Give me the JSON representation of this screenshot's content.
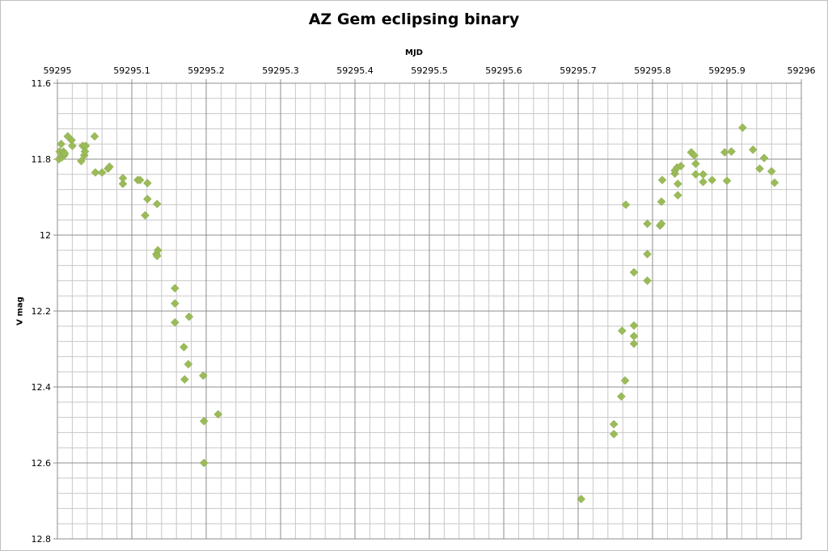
{
  "chart_data": {
    "type": "scatter",
    "title": "AZ Gem eclipsing binary",
    "xlabel": "MJD",
    "ylabel": "V mag",
    "xlim": [
      59295,
      59296
    ],
    "ylim": [
      11.6,
      12.8
    ],
    "y_inverted": true,
    "x_axis_position": "top",
    "grid": true,
    "x_ticks": [
      "59295",
      "59295.1",
      "59295.2",
      "59295.3",
      "59295.4",
      "59295.5",
      "59295.6",
      "59295.7",
      "59295.8",
      "59295.9",
      "59296"
    ],
    "y_ticks": [
      "11.6",
      "11.8",
      "12",
      "12.2",
      "12.4",
      "12.6",
      "12.8"
    ],
    "marker": "diamond",
    "marker_color": "#9bbb59",
    "points": [
      [
        59295.002,
        11.8
      ],
      [
        59295.003,
        11.78
      ],
      [
        59295.005,
        11.76
      ],
      [
        59295.006,
        11.795
      ],
      [
        59295.008,
        11.78
      ],
      [
        59295.009,
        11.79
      ],
      [
        59295.01,
        11.785
      ],
      [
        59295.014,
        11.74
      ],
      [
        59295.019,
        11.75
      ],
      [
        59295.02,
        11.765
      ],
      [
        59295.032,
        11.805
      ],
      [
        59295.034,
        11.765
      ],
      [
        59295.036,
        11.79
      ],
      [
        59295.037,
        11.78
      ],
      [
        59295.038,
        11.765
      ],
      [
        59295.05,
        11.74
      ],
      [
        59295.051,
        11.835
      ],
      [
        59295.06,
        11.835
      ],
      [
        59295.068,
        11.825
      ],
      [
        59295.07,
        11.82
      ],
      [
        59295.088,
        11.865
      ],
      [
        59295.088,
        11.85
      ],
      [
        59295.108,
        11.855
      ],
      [
        59295.111,
        11.855
      ],
      [
        59295.118,
        11.948
      ],
      [
        59295.121,
        11.905
      ],
      [
        59295.121,
        11.863
      ],
      [
        59295.134,
        11.918
      ],
      [
        59295.135,
        12.04
      ],
      [
        59295.133,
        12.05
      ],
      [
        59295.134,
        12.055
      ],
      [
        59295.158,
        12.14
      ],
      [
        59295.158,
        12.18
      ],
      [
        59295.158,
        12.23
      ],
      [
        59295.17,
        12.295
      ],
      [
        59295.171,
        12.38
      ],
      [
        59295.176,
        12.34
      ],
      [
        59295.177,
        12.215
      ],
      [
        59295.196,
        12.37
      ],
      [
        59295.197,
        12.49
      ],
      [
        59295.197,
        12.6
      ],
      [
        59295.216,
        12.472
      ],
      [
        59295.704,
        12.695
      ],
      [
        59295.748,
        12.498
      ],
      [
        59295.748,
        12.524
      ],
      [
        59295.758,
        12.425
      ],
      [
        59295.759,
        12.252
      ],
      [
        59295.763,
        12.383
      ],
      [
        59295.764,
        11.92
      ],
      [
        59295.775,
        12.098
      ],
      [
        59295.775,
        12.238
      ],
      [
        59295.775,
        12.266
      ],
      [
        59295.775,
        12.286
      ],
      [
        59295.793,
        12.05
      ],
      [
        59295.793,
        12.12
      ],
      [
        59295.793,
        11.97
      ],
      [
        59295.81,
        11.975
      ],
      [
        59295.812,
        11.97
      ],
      [
        59295.812,
        11.912
      ],
      [
        59295.813,
        11.855
      ],
      [
        59295.83,
        11.838
      ],
      [
        59295.83,
        11.83
      ],
      [
        59295.833,
        11.822
      ],
      [
        59295.834,
        11.865
      ],
      [
        59295.834,
        11.895
      ],
      [
        59295.838,
        11.818
      ],
      [
        59295.852,
        11.782
      ],
      [
        59295.856,
        11.79
      ],
      [
        59295.858,
        11.812
      ],
      [
        59295.858,
        11.84
      ],
      [
        59295.868,
        11.84
      ],
      [
        59295.868,
        11.86
      ],
      [
        59295.88,
        11.855
      ],
      [
        59295.897,
        11.782
      ],
      [
        59295.9,
        11.857
      ],
      [
        59295.906,
        11.78
      ],
      [
        59295.921,
        11.717
      ],
      [
        59295.935,
        11.775
      ],
      [
        59295.944,
        11.825
      ],
      [
        59295.95,
        11.797
      ],
      [
        59295.96,
        11.832
      ],
      [
        59295.964,
        11.862
      ]
    ]
  }
}
